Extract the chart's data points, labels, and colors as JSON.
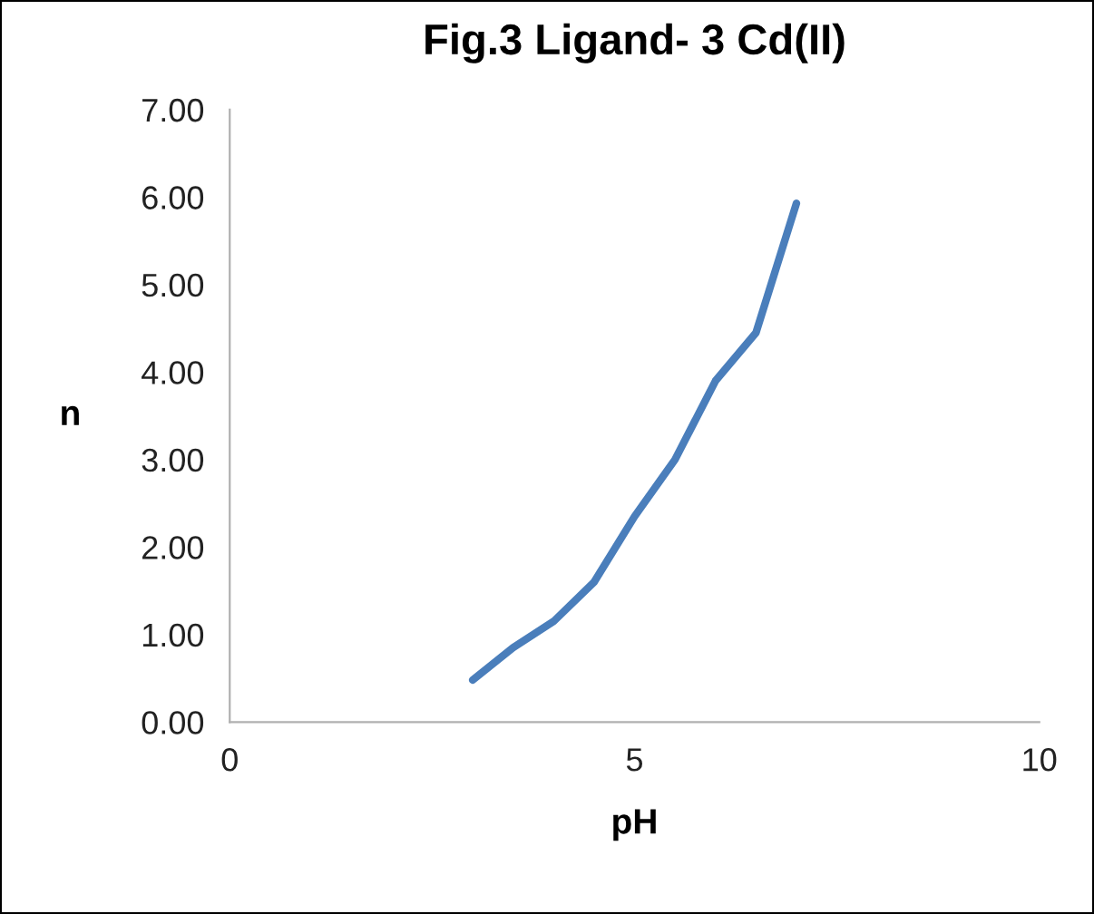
{
  "chart_data": {
    "type": "line",
    "title": "Fig.3 Ligand- 3 Cd(II)",
    "xlabel": "pH",
    "ylabel": "n",
    "x": [
      3,
      3.5,
      4,
      4.5,
      5,
      5.5,
      6,
      6.5,
      7
    ],
    "series": [
      {
        "color": "#4a7ebb",
        "values": [
          0.48,
          0.85,
          1.15,
          1.6,
          2.35,
          3.0,
          3.9,
          4.45,
          5.93
        ]
      }
    ],
    "xlim": [
      0,
      10
    ],
    "xticks": [
      0,
      5,
      10
    ],
    "ylim": [
      0,
      7
    ],
    "yticks": [
      {
        "value": 0,
        "label": "0.00"
      },
      {
        "value": 1,
        "label": "1.00"
      },
      {
        "value": 2,
        "label": "2.00"
      },
      {
        "value": 3,
        "label": "3.00"
      },
      {
        "value": 4,
        "label": "4.00"
      },
      {
        "value": 5,
        "label": "5.00"
      },
      {
        "value": 6,
        "label": "6.00"
      },
      {
        "value": 7,
        "label": "7.00"
      }
    ],
    "grid": false,
    "legend": false,
    "marker": "none",
    "line_style": "solid"
  }
}
